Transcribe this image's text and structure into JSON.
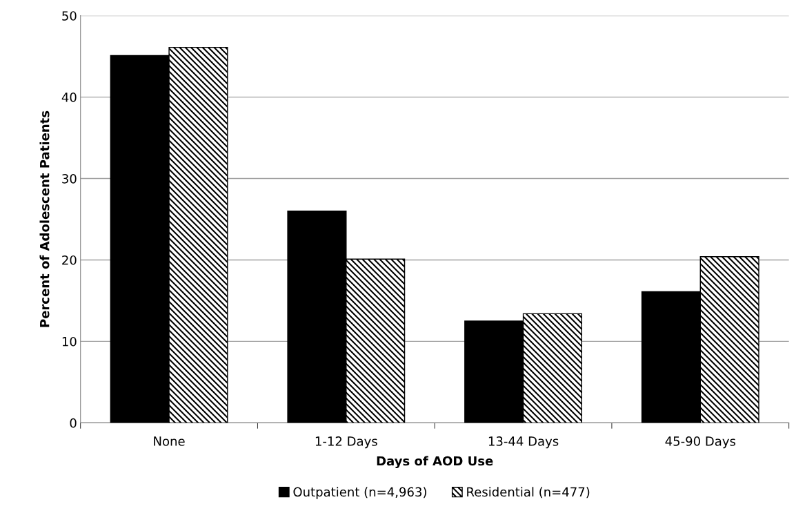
{
  "chart_data": {
    "type": "bar",
    "xlabel": "Days of AOD Use",
    "ylabel": "Percent of Adolescent Patients",
    "categories": [
      "None",
      "1-12 Days",
      "13-44 Days",
      "45-90 Days"
    ],
    "series": [
      {
        "name": "Outpatient (n=4,963)",
        "color": "#000000",
        "values": [
          45.1,
          26.0,
          12.5,
          16.1
        ]
      },
      {
        "name": "Residential (n=477)",
        "color": "#000000",
        "values": [
          46.1,
          20.1,
          13.4,
          20.4
        ]
      }
    ],
    "ylim": [
      0,
      50
    ],
    "yticks": [
      0,
      10,
      20,
      30,
      40,
      50
    ],
    "grid": "y",
    "legend": "bottom"
  }
}
